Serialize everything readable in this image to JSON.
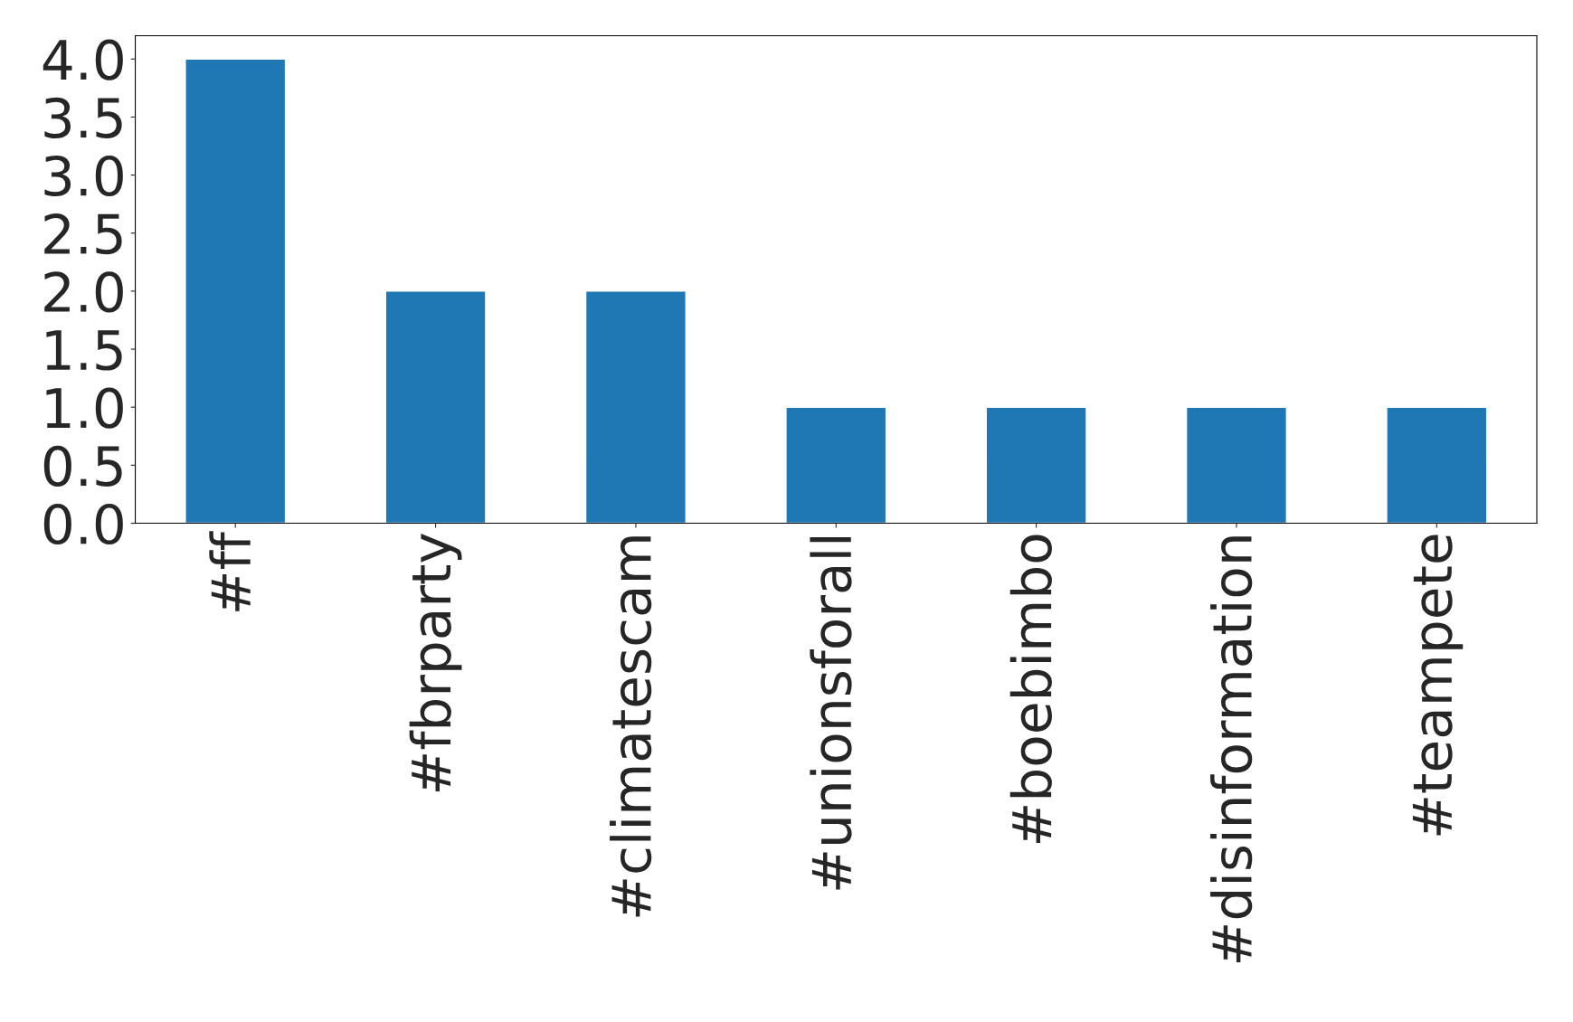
{
  "chart_data": {
    "type": "bar",
    "categories": [
      "#ff",
      "#fbrparty",
      "#climatescam",
      "#unionsforall",
      "#boebimbo",
      "#disinformation",
      "#teampete"
    ],
    "values": [
      4,
      2,
      2,
      1,
      1,
      1,
      1
    ],
    "color": "#1f77b4",
    "ylim": [
      0,
      4.2
    ],
    "yticks": [
      {
        "value": 0,
        "label": "0.0"
      },
      {
        "value": 0.5,
        "label": "0.5"
      },
      {
        "value": 1,
        "label": "1.0"
      },
      {
        "value": 1.5,
        "label": "1.5"
      },
      {
        "value": 2,
        "label": "2.0"
      },
      {
        "value": 2.5,
        "label": "2.5"
      },
      {
        "value": 3,
        "label": "3.0"
      },
      {
        "value": 3.5,
        "label": "3.5"
      },
      {
        "value": 4,
        "label": "4.0"
      }
    ],
    "grid": false,
    "legend": false
  }
}
